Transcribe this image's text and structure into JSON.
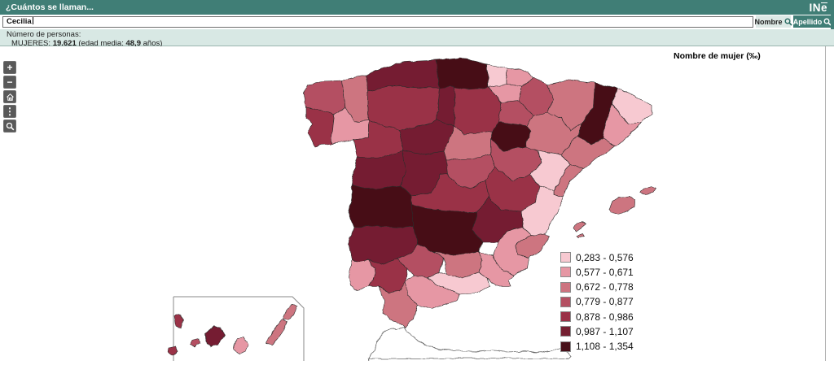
{
  "header": {
    "title": "¿Cuántos se llaman...",
    "logo_in": "IN",
    "logo_e": "e"
  },
  "search": {
    "value": "Cecilia",
    "buttons": [
      {
        "label": "Nombre"
      },
      {
        "label": "Apellido"
      }
    ]
  },
  "info": {
    "heading": "Número de personas:",
    "group": "MUJERES:",
    "count": "19.621",
    "age_prefix": "(edad media:",
    "age_value": "48,9",
    "age_suffix": "años)"
  },
  "map": {
    "title": "Nombre de mujer (‰)",
    "controls": [
      {
        "id": "zoom-in",
        "glyph": "+"
      },
      {
        "id": "zoom-out",
        "glyph": "−"
      },
      {
        "id": "home",
        "glyph": ""
      },
      {
        "id": "more",
        "glyph": "⋮"
      },
      {
        "id": "search",
        "glyph": ""
      }
    ],
    "legend": [
      {
        "range": "0,283 - 0,576",
        "color": "#f7c9d1"
      },
      {
        "range": "0,577 - 0,671",
        "color": "#e697a4"
      },
      {
        "range": "0,672 - 0,778",
        "color": "#cd7480"
      },
      {
        "range": "0,779 - 0,877",
        "color": "#b45062"
      },
      {
        "range": "0,878 - 0,986",
        "color": "#9a3147"
      },
      {
        "range": "0,987 - 1,107",
        "color": "#741f31"
      },
      {
        "range": "1,108 - 1,354",
        "color": "#471019"
      }
    ],
    "provinces": [
      {
        "id": "acoruna",
        "name": "A Coruña",
        "cls": 4
      },
      {
        "id": "lugo",
        "name": "Lugo",
        "cls": 3
      },
      {
        "id": "pontevedra",
        "name": "Pontevedra",
        "cls": 5
      },
      {
        "id": "ourense",
        "name": "Ourense",
        "cls": 2
      },
      {
        "id": "asturias",
        "name": "Asturias",
        "cls": 6
      },
      {
        "id": "cantabria",
        "name": "Cantabria",
        "cls": 7
      },
      {
        "id": "bizkaia",
        "name": "Bizkaia",
        "cls": 1
      },
      {
        "id": "gipuzkoa",
        "name": "Gipuzkoa",
        "cls": 2
      },
      {
        "id": "araba",
        "name": "Araba/Álava",
        "cls": 2
      },
      {
        "id": "navarra",
        "name": "Navarra",
        "cls": 4
      },
      {
        "id": "larioja",
        "name": "La Rioja",
        "cls": 4
      },
      {
        "id": "leon",
        "name": "León",
        "cls": 5
      },
      {
        "id": "palencia",
        "name": "Palencia",
        "cls": 6
      },
      {
        "id": "burgos",
        "name": "Burgos",
        "cls": 5
      },
      {
        "id": "zamora",
        "name": "Zamora",
        "cls": 5
      },
      {
        "id": "valladolid",
        "name": "Valladolid",
        "cls": 6
      },
      {
        "id": "soria",
        "name": "Soria",
        "cls": 7
      },
      {
        "id": "segovia",
        "name": "Segovia",
        "cls": 3
      },
      {
        "id": "avila",
        "name": "Ávila",
        "cls": 6
      },
      {
        "id": "salamanca",
        "name": "Salamanca",
        "cls": 6
      },
      {
        "id": "madrid",
        "name": "Madrid",
        "cls": 4
      },
      {
        "id": "guadalajara",
        "name": "Guadalajara",
        "cls": 4
      },
      {
        "id": "cuenca",
        "name": "Cuenca",
        "cls": 5
      },
      {
        "id": "teruel",
        "name": "Teruel",
        "cls": 1
      },
      {
        "id": "zaragoza",
        "name": "Zaragoza",
        "cls": 3
      },
      {
        "id": "huesca",
        "name": "Huesca",
        "cls": 3
      },
      {
        "id": "lleida",
        "name": "Lleida",
        "cls": 7
      },
      {
        "id": "girona",
        "name": "Girona",
        "cls": 1
      },
      {
        "id": "barcelona",
        "name": "Barcelona",
        "cls": 2
      },
      {
        "id": "tarragona",
        "name": "Tarragona",
        "cls": 3
      },
      {
        "id": "castellon",
        "name": "Castellón",
        "cls": 3
      },
      {
        "id": "valencia",
        "name": "Valencia",
        "cls": 1
      },
      {
        "id": "alicante",
        "name": "Alicante",
        "cls": 3
      },
      {
        "id": "murcia",
        "name": "Murcia",
        "cls": 2
      },
      {
        "id": "albacete",
        "name": "Albacete",
        "cls": 6
      },
      {
        "id": "toledo",
        "name": "Toledo",
        "cls": 5
      },
      {
        "id": "ciudadreal",
        "name": "Ciudad Real",
        "cls": 7
      },
      {
        "id": "caceres",
        "name": "Cáceres",
        "cls": 7
      },
      {
        "id": "badajoz",
        "name": "Badajoz",
        "cls": 6
      },
      {
        "id": "huelva",
        "name": "Huelva",
        "cls": 2
      },
      {
        "id": "sevilla",
        "name": "Sevilla",
        "cls": 5
      },
      {
        "id": "cordoba",
        "name": "Córdoba",
        "cls": 4
      },
      {
        "id": "jaen",
        "name": "Jaén",
        "cls": 3
      },
      {
        "id": "granada",
        "name": "Granada",
        "cls": 1
      },
      {
        "id": "almeria",
        "name": "Almería",
        "cls": 2
      },
      {
        "id": "malaga",
        "name": "Málaga",
        "cls": 2
      },
      {
        "id": "cadiz",
        "name": "Cádiz",
        "cls": 3
      },
      {
        "id": "mallorca",
        "name": "Mallorca",
        "cls": 3
      },
      {
        "id": "menorca",
        "name": "Menorca",
        "cls": 3
      },
      {
        "id": "ibiza",
        "name": "Ibiza",
        "cls": 3
      },
      {
        "id": "formentera",
        "name": "Formentera",
        "cls": 3
      },
      {
        "id": "lapalma",
        "name": "La Palma",
        "cls": 5
      },
      {
        "id": "elhierro",
        "name": "El Hierro",
        "cls": 5
      },
      {
        "id": "lagomera",
        "name": "La Gomera",
        "cls": 4
      },
      {
        "id": "tenerife",
        "name": "Tenerife",
        "cls": 6
      },
      {
        "id": "grancanaria",
        "name": "Gran Canaria",
        "cls": 2
      },
      {
        "id": "fuerteventura",
        "name": "Fuerteventura",
        "cls": 3
      },
      {
        "id": "lanzarote",
        "name": "Lanzarote",
        "cls": 3
      }
    ]
  }
}
